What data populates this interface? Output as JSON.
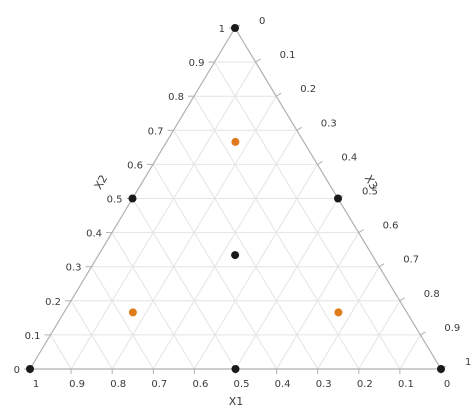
{
  "chart_data": {
    "type": "ternary-scatter",
    "axes": [
      {
        "name": "X1",
        "ticks": [
          "1",
          "0.9",
          "0.8",
          "0.7",
          "0.6",
          "0.5",
          "0.4",
          "0.3",
          "0.2",
          "0.1",
          "0"
        ]
      },
      {
        "name": "X2",
        "ticks": [
          "0",
          "0.1",
          "0.2",
          "0.3",
          "0.4",
          "0.5",
          "0.6",
          "0.7",
          "0.8",
          "0.9",
          "1"
        ]
      },
      {
        "name": "X3",
        "ticks": [
          "0",
          "0.1",
          "0.2",
          "0.3",
          "0.4",
          "0.5",
          "0.6",
          "0.7",
          "0.8",
          "0.9",
          "1"
        ]
      }
    ],
    "grid": true,
    "points": [
      {
        "x1": 1,
        "x2": 0,
        "x3": 0,
        "color": "#1a1a1a"
      },
      {
        "x1": 0,
        "x2": 1,
        "x3": 0,
        "color": "#1a1a1a"
      },
      {
        "x1": 0,
        "x2": 0,
        "x3": 1,
        "color": "#1a1a1a"
      },
      {
        "x1": 0.5,
        "x2": 0.5,
        "x3": 0,
        "color": "#1a1a1a"
      },
      {
        "x1": 0.5,
        "x2": 0,
        "x3": 0.5,
        "color": "#1a1a1a"
      },
      {
        "x1": 0,
        "x2": 0.5,
        "x3": 0.5,
        "color": "#1a1a1a"
      },
      {
        "x1": 0.333,
        "x2": 0.333,
        "x3": 0.333,
        "color": "#1a1a1a"
      },
      {
        "x1": 0.667,
        "x2": 0.167,
        "x3": 0.167,
        "color": "#e07b1c"
      },
      {
        "x1": 0.167,
        "x2": 0.667,
        "x3": 0.167,
        "color": "#e07b1c"
      },
      {
        "x1": 0.167,
        "x2": 0.167,
        "x3": 0.667,
        "color": "#e07b1c"
      }
    ]
  }
}
